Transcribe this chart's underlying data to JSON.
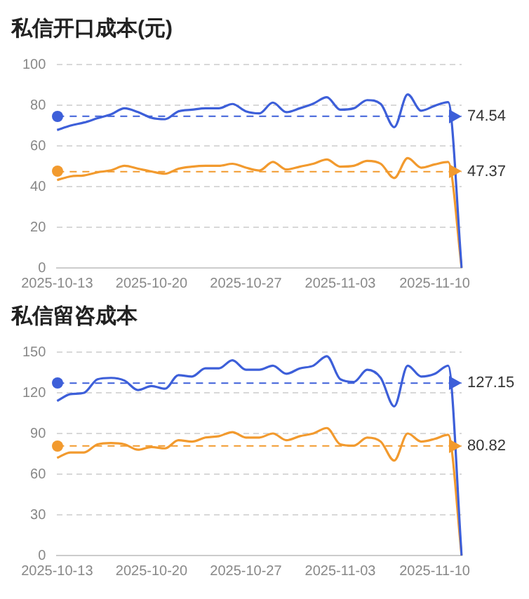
{
  "chart_data": [
    {
      "type": "line",
      "title": "私信开口成本(元)",
      "categories": [
        "2025-10-13",
        null,
        null,
        null,
        null,
        null,
        null,
        "2025-10-20",
        null,
        null,
        null,
        null,
        null,
        null,
        "2025-10-27",
        null,
        null,
        null,
        null,
        null,
        null,
        "2025-11-03",
        null,
        null,
        null,
        null,
        null,
        null,
        "2025-11-10",
        null,
        null
      ],
      "series": [
        {
          "color": "#3d5fd9",
          "values": [
            67.8,
            70,
            71.5,
            73.6,
            75.5,
            78.5,
            76.6,
            73.8,
            73.1,
            77,
            77.8,
            78.5,
            78.5,
            80.6,
            77,
            76,
            81.3,
            76.6,
            78.5,
            80.8,
            83.9,
            77.8,
            78.5,
            82.5,
            80.6,
            69.2,
            85.3,
            77.3,
            79.7,
            81.5,
            0
          ]
        },
        {
          "color": "#f29a2e",
          "values": [
            43.2,
            45,
            45.5,
            47,
            48,
            50.2,
            48.8,
            47.4,
            46.3,
            48.8,
            49.8,
            50.2,
            50.2,
            51.2,
            49.3,
            47.9,
            52.1,
            48.4,
            49.8,
            51.2,
            53.3,
            49.8,
            50.2,
            52.6,
            51.2,
            44.2,
            54,
            49.3,
            50.9,
            52.1,
            0
          ]
        }
      ],
      "ylim": [
        0,
        100
      ],
      "yticks": [
        0,
        20,
        40,
        60,
        80,
        100
      ],
      "grid": "y",
      "legend": false,
      "marker": "none",
      "line_style": "solid",
      "ref_lines": [
        {
          "axis": "y",
          "value": 74.54,
          "label": "74.54",
          "color": "#3d5fd9",
          "line_style": "dashed"
        },
        {
          "axis": "y",
          "value": 47.37,
          "label": "47.37",
          "color": "#f29a2e",
          "line_style": "dashed"
        }
      ]
    },
    {
      "type": "line",
      "title": "私信留咨成本",
      "categories": [
        "2025-10-13",
        null,
        null,
        null,
        null,
        null,
        null,
        "2025-10-20",
        null,
        null,
        null,
        null,
        null,
        null,
        "2025-10-27",
        null,
        null,
        null,
        null,
        null,
        null,
        "2025-11-03",
        null,
        null,
        null,
        null,
        null,
        null,
        "2025-11-10",
        null,
        null
      ],
      "series": [
        {
          "color": "#3d5fd9",
          "values": [
            114,
            119,
            120,
            130,
            131,
            129,
            122,
            125,
            123,
            133,
            132,
            138,
            138,
            144,
            137,
            137,
            140,
            134,
            138,
            140,
            147,
            130,
            128,
            137,
            131,
            110,
            140,
            132,
            134,
            140,
            0
          ]
        },
        {
          "color": "#f29a2e",
          "values": [
            72,
            76,
            76,
            82,
            83,
            82,
            78,
            80,
            79,
            85,
            84,
            87,
            88,
            91,
            87,
            87,
            90,
            85,
            88,
            90,
            94,
            82,
            81,
            87,
            84,
            70,
            90,
            84,
            86,
            89,
            0
          ]
        }
      ],
      "ylim": [
        0,
        150
      ],
      "yticks": [
        0,
        30,
        60,
        90,
        120,
        150
      ],
      "grid": "y",
      "legend": false,
      "marker": "none",
      "line_style": "solid",
      "ref_lines": [
        {
          "axis": "y",
          "value": 127.15,
          "label": "127.15",
          "color": "#3d5fd9",
          "line_style": "dashed"
        },
        {
          "axis": "y",
          "value": 80.82,
          "label": "80.82",
          "color": "#f29a2e",
          "line_style": "dashed"
        }
      ]
    }
  ]
}
